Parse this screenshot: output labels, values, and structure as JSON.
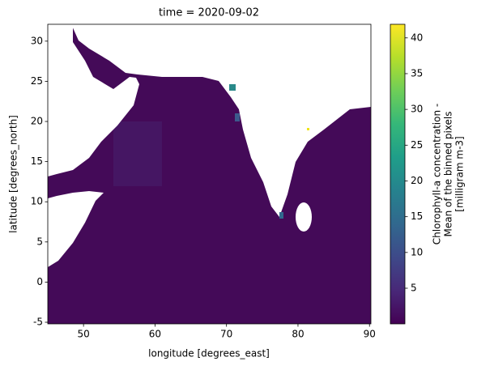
{
  "chart_data": {
    "type": "map",
    "title": "time = 2020-09-02",
    "x_label": "longitude [degrees_east]",
    "y_label": "latitude [degrees_north]",
    "xlim": [
      45,
      90.2
    ],
    "xticks": [
      50,
      60,
      70,
      80,
      90
    ],
    "ylim": [
      -5.2,
      32.1
    ],
    "yticks": [
      -5,
      0,
      5,
      10,
      15,
      20,
      25,
      30
    ],
    "colorbar": {
      "label": [
        "Chlorophyll-a concentration -",
        "Mean of the binned pixels",
        "[milligram m-3]"
      ],
      "colormap": "viridis",
      "lim": [
        0.02,
        41.9
      ],
      "ticks": [
        5,
        10,
        15,
        20,
        25,
        30,
        35,
        40
      ]
    }
  }
}
